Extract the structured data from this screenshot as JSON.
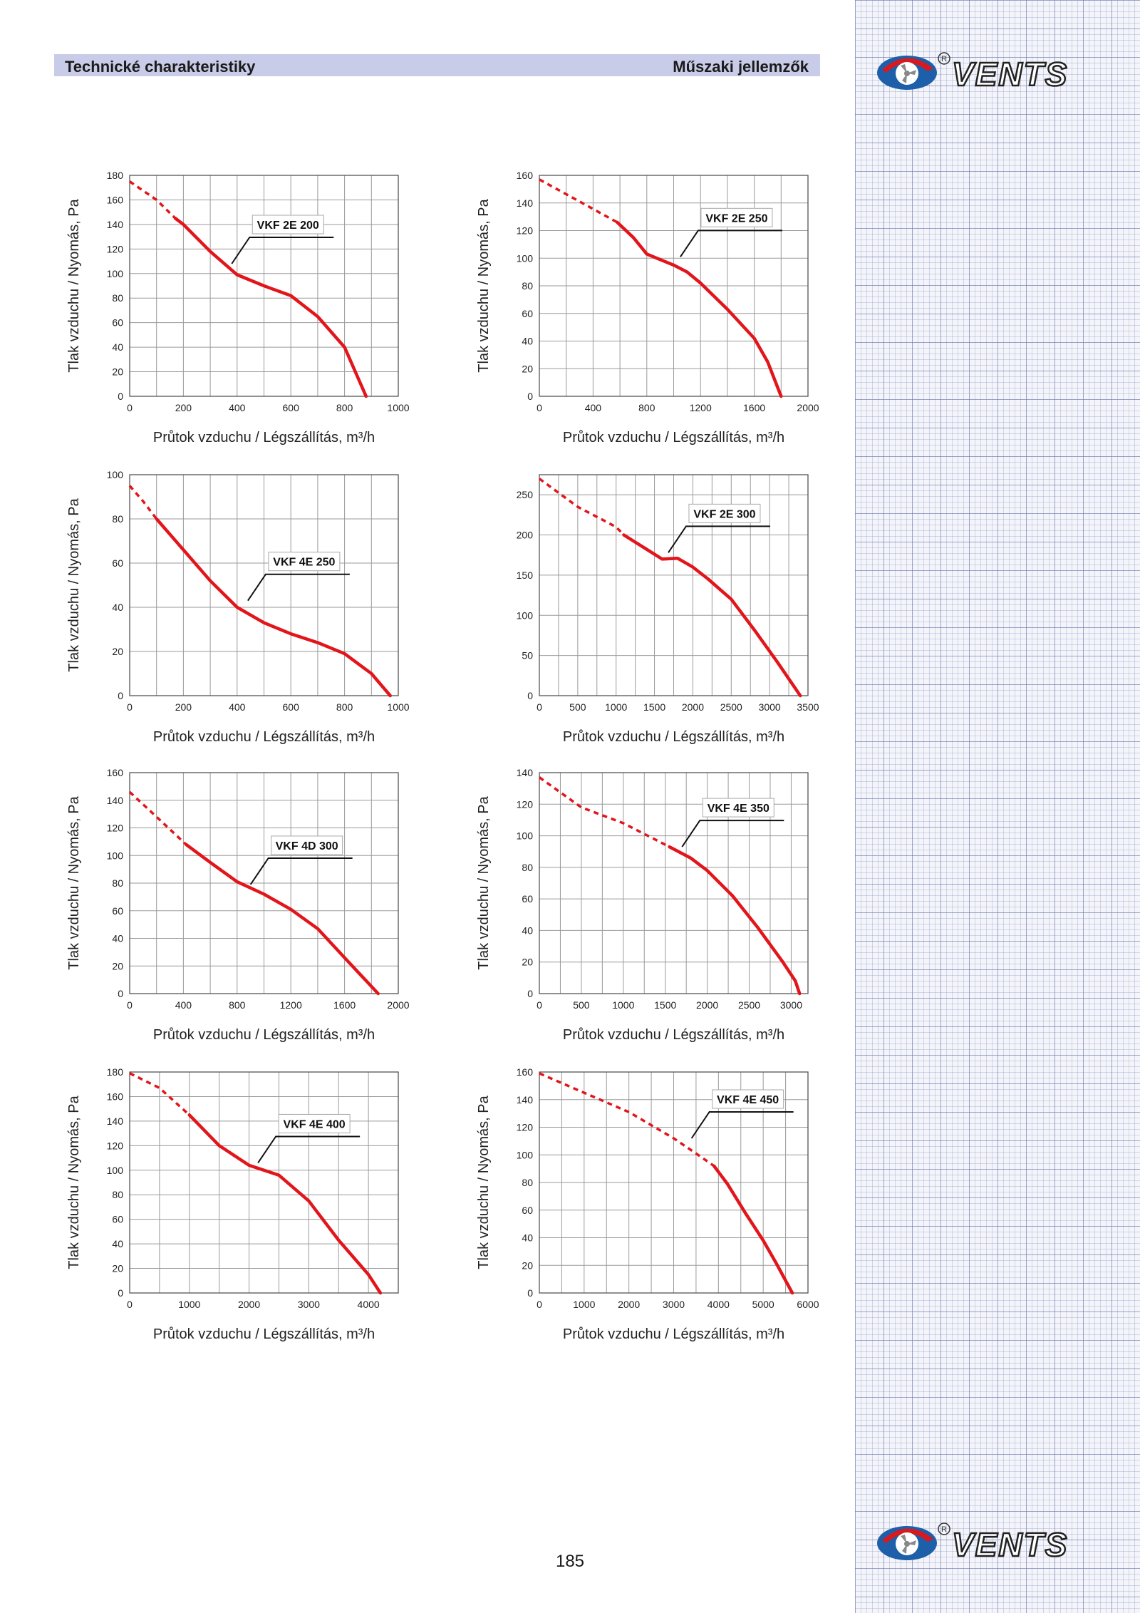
{
  "header": {
    "left_title": "Technické charakteristiky",
    "right_title": "Műszaki jellemzők"
  },
  "page_number": "185",
  "colors": {
    "curve": "#e2151b",
    "header_bar": "#c9cce8",
    "grid": "#9a9a9a"
  },
  "logo": {
    "brand": "VENTS",
    "icon": "fan-icon"
  },
  "chart_data": [
    {
      "type": "line",
      "title": "VKF 2E 200",
      "xlabel": "Průtok vzduchu / Légszállítás, m³/h",
      "ylabel": "Tlak vzduchu / Nyomás, Pa",
      "xlim": [
        0,
        1000
      ],
      "ylim": [
        0,
        180
      ],
      "grid": true,
      "x_ticks": [
        0,
        200,
        400,
        600,
        800,
        1000
      ],
      "y_ticks": [
        0,
        20,
        40,
        60,
        80,
        100,
        120,
        140,
        160,
        180
      ],
      "dashed": [
        [
          0,
          175
        ],
        [
          100,
          160
        ],
        [
          170,
          145
        ]
      ],
      "solid": [
        [
          170,
          145
        ],
        [
          200,
          140
        ],
        [
          300,
          118
        ],
        [
          400,
          99
        ],
        [
          500,
          90
        ],
        [
          600,
          82
        ],
        [
          700,
          65
        ],
        [
          800,
          40
        ],
        [
          880,
          0
        ]
      ],
      "label_anchor": [
        380,
        108
      ]
    },
    {
      "type": "line",
      "title": "VKF 2E 250",
      "xlabel": "Průtok vzduchu / Légszállítás, m³/h",
      "ylabel": "Tlak vzduchu / Nyomás, Pa",
      "xlim": [
        0,
        2000
      ],
      "ylim": [
        0,
        160
      ],
      "grid": true,
      "x_ticks": [
        0,
        400,
        800,
        1200,
        1600,
        2000
      ],
      "y_ticks": [
        0,
        20,
        40,
        60,
        80,
        100,
        120,
        140,
        160
      ],
      "dashed": [
        [
          0,
          157
        ],
        [
          300,
          141
        ],
        [
          580,
          126
        ]
      ],
      "solid": [
        [
          580,
          126
        ],
        [
          700,
          115
        ],
        [
          800,
          103
        ],
        [
          900,
          99
        ],
        [
          1000,
          95
        ],
        [
          1100,
          90
        ],
        [
          1200,
          82
        ],
        [
          1400,
          63
        ],
        [
          1600,
          42
        ],
        [
          1700,
          25
        ],
        [
          1800,
          0
        ]
      ],
      "label_anchor": [
        1050,
        101
      ]
    },
    {
      "type": "line",
      "title": "VKF 4E 250",
      "xlabel": "Průtok vzduchu / Légszállítás, m³/h",
      "ylabel": "Tlak vzduchu / Nyomás, Pa",
      "xlim": [
        0,
        1000
      ],
      "ylim": [
        0,
        100
      ],
      "grid": true,
      "x_ticks": [
        0,
        200,
        400,
        600,
        800,
        1000
      ],
      "y_ticks": [
        0,
        20,
        40,
        60,
        80,
        100
      ],
      "dashed": [
        [
          0,
          95
        ],
        [
          50,
          88
        ],
        [
          100,
          80
        ]
      ],
      "solid": [
        [
          100,
          80
        ],
        [
          200,
          66
        ],
        [
          300,
          52
        ],
        [
          400,
          40
        ],
        [
          500,
          33
        ],
        [
          600,
          28
        ],
        [
          700,
          24
        ],
        [
          800,
          19
        ],
        [
          900,
          10
        ],
        [
          970,
          0
        ]
      ],
      "label_anchor": [
        440,
        43
      ]
    },
    {
      "type": "line",
      "title": "VKF 2E 300",
      "xlabel": "Průtok vzduchu / Légszállítás, m³/h",
      "ylabel": "",
      "xlim": [
        0,
        3500
      ],
      "ylim": [
        0,
        275
      ],
      "grid": true,
      "x_ticks": [
        0,
        500,
        1000,
        1500,
        2000,
        2500,
        3000,
        3500
      ],
      "y_ticks": [
        0,
        50,
        100,
        150,
        200,
        250
      ],
      "dashed": [
        [
          0,
          270
        ],
        [
          500,
          235
        ],
        [
          1000,
          210
        ],
        [
          1100,
          200
        ]
      ],
      "solid": [
        [
          1100,
          200
        ],
        [
          1400,
          182
        ],
        [
          1600,
          170
        ],
        [
          1800,
          171
        ],
        [
          2000,
          160
        ],
        [
          2200,
          145
        ],
        [
          2500,
          120
        ],
        [
          2800,
          82
        ],
        [
          3100,
          42
        ],
        [
          3400,
          0
        ]
      ],
      "label_anchor": [
        1680,
        178
      ]
    },
    {
      "type": "line",
      "title": "VKF 4D 300",
      "xlabel": "Průtok vzduchu / Légszállítás, m³/h",
      "ylabel": "Tlak vzduchu / Nyomás, Pa",
      "xlim": [
        0,
        2000
      ],
      "ylim": [
        0,
        160
      ],
      "grid": true,
      "x_ticks": [
        0,
        400,
        800,
        1200,
        1600,
        2000
      ],
      "y_ticks": [
        0,
        20,
        40,
        60,
        80,
        100,
        120,
        140,
        160
      ],
      "dashed": [
        [
          0,
          146
        ],
        [
          200,
          128
        ],
        [
          420,
          108
        ]
      ],
      "solid": [
        [
          420,
          108
        ],
        [
          600,
          95
        ],
        [
          800,
          81
        ],
        [
          1000,
          72
        ],
        [
          1200,
          61
        ],
        [
          1400,
          47
        ],
        [
          1600,
          26
        ],
        [
          1850,
          0
        ]
      ],
      "label_anchor": [
        900,
        79
      ]
    },
    {
      "type": "line",
      "title": "VKF 4E 350",
      "xlabel": "Průtok vzduchu / Légszállítás, m³/h",
      "ylabel": "Tlak vzduchu / Nyomás, Pa",
      "xlim": [
        0,
        3200
      ],
      "ylim": [
        0,
        140
      ],
      "grid": true,
      "x_ticks": [
        0,
        500,
        1000,
        1500,
        2000,
        2500,
        3000
      ],
      "y_ticks": [
        0,
        20,
        40,
        60,
        80,
        100,
        120,
        140
      ],
      "dashed": [
        [
          0,
          137
        ],
        [
          500,
          118
        ],
        [
          1000,
          108
        ],
        [
          1550,
          93
        ]
      ],
      "solid": [
        [
          1550,
          93
        ],
        [
          1800,
          86
        ],
        [
          2000,
          78
        ],
        [
          2300,
          62
        ],
        [
          2600,
          42
        ],
        [
          2900,
          20
        ],
        [
          3050,
          8
        ],
        [
          3100,
          0
        ]
      ],
      "label_anchor": [
        1700,
        93
      ]
    },
    {
      "type": "line",
      "title": "VKF 4E 400",
      "xlabel": "Průtok vzduchu / Légszállítás, m³/h",
      "ylabel": "Tlak vzduchu / Nyomás, Pa",
      "xlim": [
        0,
        4500
      ],
      "ylim": [
        0,
        180
      ],
      "grid": true,
      "x_ticks": [
        0,
        1000,
        2000,
        3000,
        4000
      ],
      "y_ticks": [
        0,
        20,
        40,
        60,
        80,
        100,
        120,
        140,
        160,
        180
      ],
      "dashed": [
        [
          0,
          179
        ],
        [
          500,
          167
        ],
        [
          1000,
          145
        ]
      ],
      "solid": [
        [
          1000,
          145
        ],
        [
          1500,
          120
        ],
        [
          2000,
          104
        ],
        [
          2500,
          96
        ],
        [
          3000,
          75
        ],
        [
          3500,
          43
        ],
        [
          4000,
          15
        ],
        [
          4200,
          0
        ]
      ],
      "label_anchor": [
        2150,
        106
      ]
    },
    {
      "type": "line",
      "title": "VKF 4E 450",
      "xlabel": "Průtok vzduchu / Légszállítás, m³/h",
      "ylabel": "Tlak vzduchu / Nyomás, Pa",
      "xlim": [
        0,
        6000
      ],
      "ylim": [
        0,
        160
      ],
      "grid": true,
      "x_ticks": [
        0,
        1000,
        2000,
        3000,
        4000,
        5000,
        6000
      ],
      "y_ticks": [
        0,
        20,
        40,
        60,
        80,
        100,
        120,
        140,
        160
      ],
      "dashed": [
        [
          0,
          159
        ],
        [
          1000,
          145
        ],
        [
          2000,
          131
        ],
        [
          3000,
          112
        ],
        [
          3500,
          101
        ],
        [
          3900,
          92
        ]
      ],
      "solid": [
        [
          3900,
          92
        ],
        [
          4200,
          79
        ],
        [
          4600,
          58
        ],
        [
          5000,
          38
        ],
        [
          5300,
          21
        ],
        [
          5650,
          0
        ]
      ],
      "label_anchor": [
        3400,
        112
      ]
    }
  ]
}
